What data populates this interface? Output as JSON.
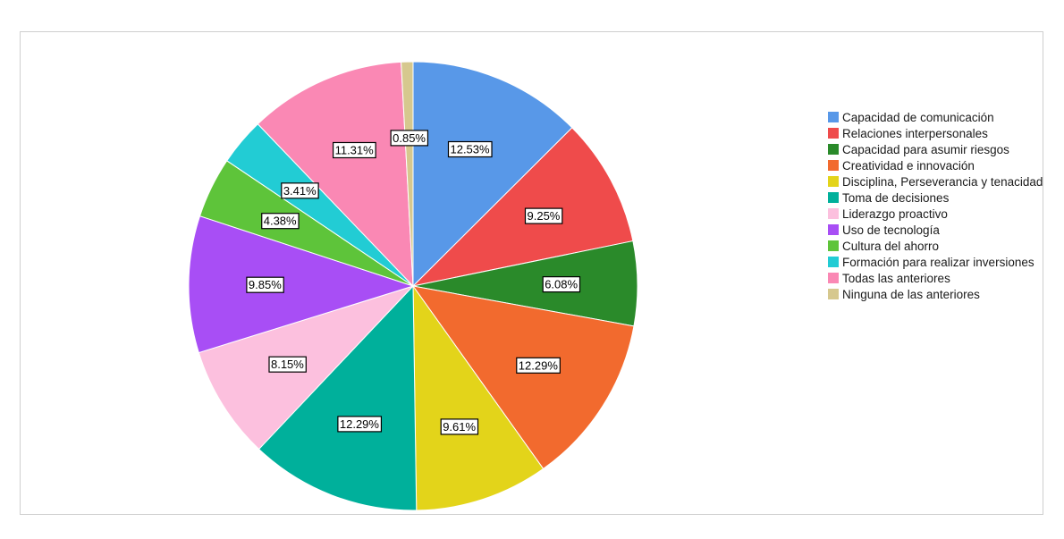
{
  "chart_data": {
    "type": "pie",
    "title": "",
    "start_angle": "top",
    "direction": "clockwise",
    "legend_position": "right",
    "slices": [
      {
        "label": "Capacidad de comunicación",
        "value": 12.53,
        "display": "12.53%",
        "color": "#5898e8"
      },
      {
        "label": "Relaciones interpersonales",
        "value": 9.25,
        "display": "9.25%",
        "color": "#ef4b4b"
      },
      {
        "label": "Capacidad para asumir riesgos",
        "value": 6.08,
        "display": "6.08%",
        "color": "#2a8a2a"
      },
      {
        "label": "Creatividad e innovación",
        "value": 12.29,
        "display": "12.29%",
        "color": "#f26a2e"
      },
      {
        "label": "Disciplina, Perseverancia y tenacidad",
        "value": 9.61,
        "display": "9.61%",
        "color": "#e3d41a"
      },
      {
        "label": "Toma de decisiones",
        "value": 12.29,
        "display": "12.29%",
        "color": "#00b09b"
      },
      {
        "label": " Liderazgo proactivo",
        "value": 8.15,
        "display": "8.15%",
        "color": "#fcc0de"
      },
      {
        "label": "Uso de tecnología",
        "value": 9.85,
        "display": "9.85%",
        "color": "#a84ef5"
      },
      {
        "label": "Cultura del ahorro",
        "value": 4.38,
        "display": "4.38%",
        "color": "#5ec43a"
      },
      {
        "label": "Formación para realizar inversiones",
        "value": 3.41,
        "display": "3.41%",
        "color": "#22ccd4"
      },
      {
        "label": "Todas las anteriores",
        "value": 11.31,
        "display": "11.31%",
        "color": "#fa88b4"
      },
      {
        "label": "Ninguna de las anteriores",
        "value": 0.85,
        "display": "0.85%",
        "color": "#d6c88e"
      }
    ]
  }
}
